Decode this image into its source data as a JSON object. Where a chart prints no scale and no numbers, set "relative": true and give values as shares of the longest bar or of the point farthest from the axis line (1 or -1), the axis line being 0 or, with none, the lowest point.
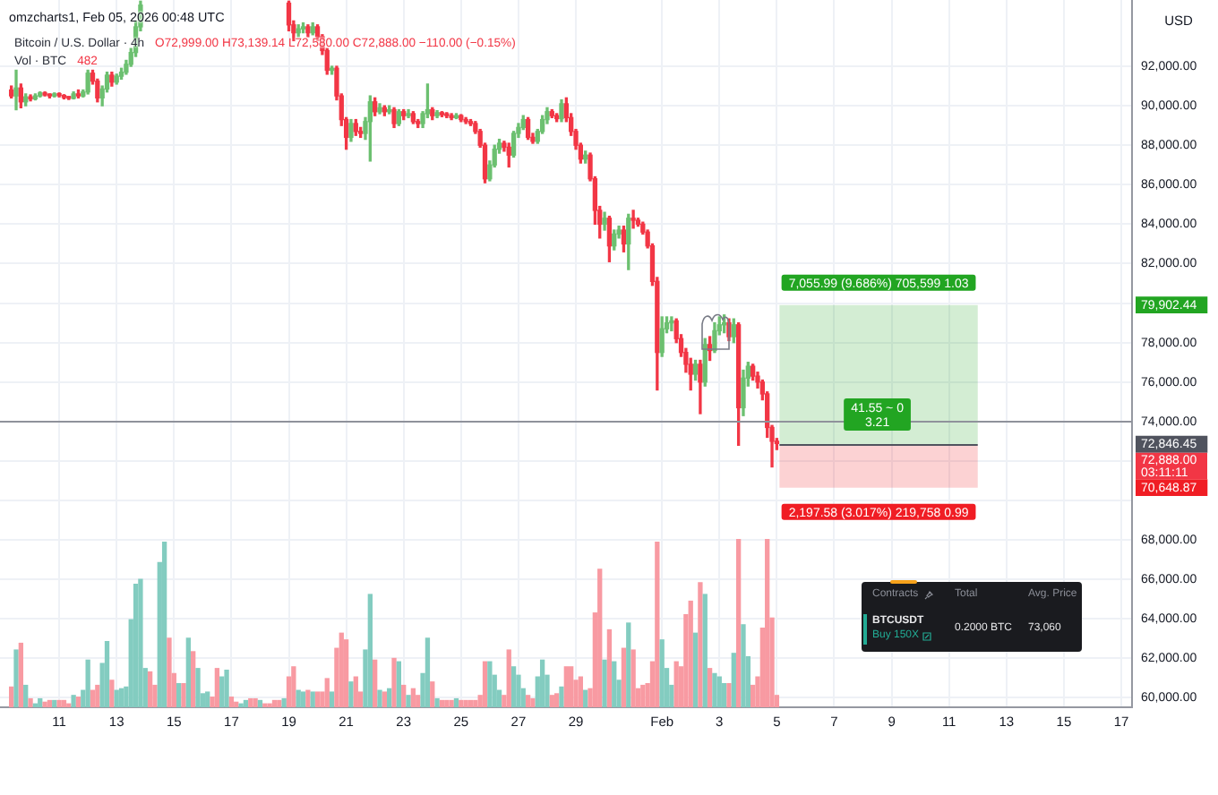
{
  "chart_data": [
    {
      "type": "candlestick",
      "title": "Bitcoin / U.S. Dollar · 4h",
      "subtitle": "O72,999.00 H73,139.14 L72,580.00 C72,888.00 −110.00 (−0.15%)",
      "ylabel": "USD",
      "x": [
        "2026-01-09T08:00",
        "2026-01-09T12:00",
        "2026-01-09T16:00",
        "2026-01-09T20:00",
        "2026-01-10T00:00",
        "2026-01-10T04:00",
        "2026-01-10T08:00",
        "2026-01-10T12:00",
        "2026-01-10T16:00",
        "2026-01-10T20:00",
        "2026-01-11T00:00",
        "2026-01-11T04:00",
        "2026-01-11T08:00",
        "2026-01-11T12:00",
        "2026-01-11T16:00",
        "2026-01-11T20:00",
        "2026-01-12T00:00",
        "2026-01-12T04:00",
        "2026-01-12T08:00",
        "2026-01-12T12:00",
        "2026-01-12T16:00",
        "2026-01-12T20:00",
        "2026-01-13T00:00",
        "2026-01-13T04:00",
        "2026-01-13T08:00",
        "2026-01-13T12:00",
        "2026-01-13T16:00",
        "2026-01-13T20:00",
        "2026-01-19T00:00",
        "2026-01-19T04:00",
        "2026-01-19T08:00",
        "2026-01-19T12:00",
        "2026-01-19T16:00",
        "2026-01-19T20:00",
        "2026-01-20T00:00",
        "2026-01-20T04:00",
        "2026-01-20T08:00",
        "2026-01-20T12:00",
        "2026-01-20T16:00",
        "2026-01-20T20:00",
        "2026-01-21T00:00",
        "2026-01-21T04:00",
        "2026-01-21T08:00",
        "2026-01-21T12:00",
        "2026-01-21T16:00",
        "2026-01-21T20:00",
        "2026-01-22T00:00",
        "2026-01-22T04:00",
        "2026-01-22T08:00",
        "2026-01-22T12:00",
        "2026-01-22T16:00",
        "2026-01-22T20:00",
        "2026-01-23T00:00",
        "2026-01-23T04:00",
        "2026-01-23T08:00",
        "2026-01-23T12:00",
        "2026-01-23T16:00",
        "2026-01-23T20:00",
        "2026-01-24T00:00",
        "2026-01-24T04:00",
        "2026-01-24T08:00",
        "2026-01-24T12:00",
        "2026-01-24T16:00",
        "2026-01-24T20:00",
        "2026-01-25T00:00",
        "2026-01-25T04:00",
        "2026-01-25T08:00",
        "2026-01-25T12:00",
        "2026-01-25T16:00",
        "2026-01-25T20:00",
        "2026-01-26T00:00",
        "2026-01-26T04:00",
        "2026-01-26T08:00",
        "2026-01-26T12:00",
        "2026-01-26T16:00",
        "2026-01-26T20:00",
        "2026-01-27T00:00",
        "2026-01-27T04:00",
        "2026-01-27T08:00",
        "2026-01-27T12:00",
        "2026-01-27T16:00",
        "2026-01-27T20:00",
        "2026-01-28T00:00",
        "2026-01-28T04:00",
        "2026-01-28T08:00",
        "2026-01-28T12:00",
        "2026-01-28T16:00",
        "2026-01-28T20:00",
        "2026-01-29T00:00",
        "2026-01-29T04:00",
        "2026-01-29T08:00",
        "2026-01-29T12:00",
        "2026-01-29T16:00",
        "2026-01-29T20:00",
        "2026-01-30T00:00",
        "2026-01-30T04:00",
        "2026-01-30T08:00",
        "2026-01-30T12:00",
        "2026-01-30T16:00",
        "2026-01-30T20:00",
        "2026-01-31T00:00",
        "2026-01-31T04:00",
        "2026-01-31T08:00",
        "2026-01-31T12:00",
        "2026-01-31T16:00",
        "2026-01-31T20:00",
        "2026-02-01T00:00",
        "2026-02-01T04:00",
        "2026-02-01T08:00",
        "2026-02-01T12:00",
        "2026-02-01T16:00",
        "2026-02-01T20:00",
        "2026-02-02T00:00",
        "2026-02-02T04:00",
        "2026-02-02T08:00",
        "2026-02-02T12:00",
        "2026-02-02T16:00",
        "2026-02-02T20:00",
        "2026-02-03T00:00",
        "2026-02-03T04:00",
        "2026-02-03T08:00",
        "2026-02-03T12:00",
        "2026-02-03T16:00",
        "2026-02-03T20:00",
        "2026-02-04T00:00",
        "2026-02-04T04:00",
        "2026-02-04T08:00",
        "2026-02-04T12:00",
        "2026-02-04T16:00",
        "2026-02-04T20:00",
        "2026-02-05T00:00"
      ],
      "ohlc": [
        [
          90800,
          91000,
          90400,
          90500
        ],
        [
          90500,
          91800,
          89800,
          90900
        ],
        [
          90900,
          91100,
          89900,
          90200
        ],
        [
          90200,
          90600,
          90000,
          90450
        ],
        [
          90450,
          90550,
          90250,
          90350
        ],
        [
          90350,
          90600,
          90300,
          90500
        ],
        [
          90500,
          90700,
          90450,
          90650
        ],
        [
          90650,
          90700,
          90500,
          90550
        ],
        [
          90550,
          90600,
          90400,
          90500
        ],
        [
          90500,
          90650,
          90450,
          90600
        ],
        [
          90600,
          90650,
          90450,
          90520
        ],
        [
          90520,
          90560,
          90350,
          90420
        ],
        [
          90420,
          90450,
          90320,
          90380
        ],
        [
          90380,
          90700,
          90350,
          90600
        ],
        [
          90600,
          90800,
          90400,
          90500
        ],
        [
          90500,
          90800,
          90450,
          90700
        ],
        [
          90700,
          91800,
          90600,
          91650
        ],
        [
          91650,
          91800,
          91100,
          91250
        ],
        [
          91250,
          91350,
          90200,
          90400
        ],
        [
          90400,
          91000,
          90000,
          90850
        ],
        [
          90850,
          91700,
          90700,
          91550
        ],
        [
          91550,
          91700,
          91000,
          91200
        ],
        [
          91200,
          91600,
          91100,
          91500
        ],
        [
          91500,
          91900,
          91350,
          91700
        ],
        [
          91700,
          92300,
          91600,
          92100
        ],
        [
          92100,
          92900,
          92000,
          92700
        ],
        [
          92700,
          94300,
          92500,
          94000
        ],
        [
          94000,
          95300,
          93800,
          95100
        ],
        [
          95200,
          95300,
          93800,
          94100
        ],
        [
          94100,
          94300,
          93300,
          93700
        ],
        [
          93700,
          94100,
          93500,
          93900
        ],
        [
          93900,
          94200,
          93700,
          94000
        ],
        [
          94000,
          94100,
          93500,
          93700
        ],
        [
          93700,
          94200,
          93600,
          94000
        ],
        [
          94000,
          94100,
          93300,
          93500
        ],
        [
          93500,
          93600,
          92600,
          92800
        ],
        [
          92800,
          92900,
          91600,
          91800
        ],
        [
          91800,
          92000,
          91600,
          91900
        ],
        [
          91900,
          92000,
          90300,
          90500
        ],
        [
          90500,
          90600,
          89000,
          89300
        ],
        [
          89300,
          89400,
          87800,
          88400
        ],
        [
          88400,
          89300,
          88200,
          89100
        ],
        [
          89100,
          89300,
          88500,
          88700
        ],
        [
          88700,
          88900,
          88400,
          88600
        ],
        [
          88600,
          89400,
          88300,
          89200
        ],
        [
          89200,
          90500,
          87200,
          90200
        ],
        [
          90200,
          90400,
          89500,
          89700
        ],
        [
          89700,
          90100,
          89600,
          89900
        ],
        [
          89900,
          90000,
          89500,
          89700
        ],
        [
          89700,
          90000,
          89600,
          89800
        ],
        [
          89800,
          89900,
          88900,
          89100
        ],
        [
          89100,
          89800,
          89000,
          89700
        ],
        [
          89700,
          89800,
          89300,
          89500
        ],
        [
          89500,
          89800,
          89400,
          89600
        ],
        [
          89600,
          89700,
          89100,
          89200
        ],
        [
          89200,
          89300,
          88900,
          89100
        ],
        [
          89100,
          89700,
          88900,
          89600
        ],
        [
          89600,
          91100,
          89400,
          89800
        ],
        [
          89800,
          89900,
          89300,
          89500
        ],
        [
          89500,
          89750,
          89400,
          89650
        ],
        [
          89650,
          89700,
          89450,
          89550
        ],
        [
          89550,
          89650,
          89400,
          89500
        ],
        [
          89500,
          89600,
          89300,
          89400
        ],
        [
          89400,
          89600,
          89350,
          89500
        ],
        [
          89500,
          89550,
          89200,
          89300
        ],
        [
          89300,
          89400,
          89100,
          89200
        ],
        [
          89200,
          89300,
          89000,
          89100
        ],
        [
          89100,
          89200,
          88600,
          88700
        ],
        [
          88700,
          88800,
          87900,
          88000
        ],
        [
          88000,
          88100,
          86100,
          86300
        ],
        [
          86300,
          87200,
          86200,
          87000
        ],
        [
          87000,
          88000,
          86900,
          87800
        ],
        [
          87800,
          88300,
          87600,
          88100
        ],
        [
          88100,
          88200,
          87700,
          87900
        ],
        [
          87900,
          88100,
          86900,
          87500
        ],
        [
          87500,
          88700,
          87400,
          88600
        ],
        [
          88600,
          89100,
          88400,
          88900
        ],
        [
          88900,
          89500,
          88800,
          89300
        ],
        [
          89300,
          89400,
          88300,
          88400
        ],
        [
          88400,
          88600,
          88100,
          88200
        ],
        [
          88200,
          88800,
          88100,
          88700
        ],
        [
          88700,
          89500,
          88600,
          89300
        ],
        [
          89300,
          89900,
          89100,
          89700
        ],
        [
          89700,
          89800,
          89400,
          89500
        ],
        [
          89500,
          89600,
          89200,
          89350
        ],
        [
          89350,
          90300,
          89200,
          90100
        ],
        [
          90100,
          90400,
          89200,
          89400
        ],
        [
          89400,
          89600,
          88500,
          88700
        ],
        [
          88700,
          88800,
          87800,
          88000
        ],
        [
          88000,
          88100,
          87100,
          87300
        ],
        [
          87300,
          87700,
          87100,
          87500
        ],
        [
          87500,
          87600,
          86200,
          86300
        ],
        [
          86300,
          86400,
          84000,
          84700
        ],
        [
          84700,
          84900,
          83300,
          84000
        ],
        [
          84000,
          84600,
          83700,
          84300
        ],
        [
          84300,
          84400,
          82100,
          82900
        ],
        [
          82900,
          83700,
          82700,
          83500
        ],
        [
          83500,
          83900,
          83300,
          83700
        ],
        [
          83700,
          83900,
          82600,
          83000
        ],
        [
          83000,
          84500,
          81700,
          84300
        ],
        [
          84300,
          84700,
          83800,
          84200
        ],
        [
          84200,
          84300,
          83900,
          84000
        ],
        [
          84000,
          84100,
          83500,
          83600
        ],
        [
          83600,
          83700,
          82800,
          82900
        ],
        [
          82900,
          83000,
          80900,
          81100
        ],
        [
          81100,
          81300,
          75600,
          77500
        ],
        [
          77500,
          79300,
          77300,
          78700
        ],
        [
          78700,
          79300,
          78500,
          79000
        ],
        [
          79000,
          79300,
          78600,
          79100
        ],
        [
          79100,
          79200,
          78000,
          78200
        ],
        [
          78200,
          78400,
          77300,
          77500
        ],
        [
          77500,
          77700,
          76500,
          76900
        ],
        [
          76900,
          77200,
          75600,
          76400
        ],
        [
          76400,
          77100,
          76100,
          76900
        ],
        [
          76900,
          77100,
          74400,
          76000
        ],
        [
          76000,
          78200,
          75800,
          77900
        ],
        [
          77900,
          78300,
          77100,
          77600
        ],
        [
          77600,
          79000,
          77500,
          78600
        ],
        [
          78600,
          79300,
          78400,
          78900
        ],
        [
          78900,
          79400,
          78500,
          79000
        ],
        [
          79000,
          79200,
          78100,
          78300
        ],
        [
          78300,
          79200,
          78000,
          78900
        ],
        [
          78900,
          79000,
          72800,
          74700
        ],
        [
          74700,
          76600,
          74300,
          76200
        ],
        [
          76200,
          77000,
          75800,
          76800
        ],
        [
          76800,
          76900,
          76100,
          76300
        ],
        [
          76300,
          76500,
          75700,
          76000
        ],
        [
          76000,
          76100,
          75100,
          75400
        ],
        [
          75400,
          75500,
          73200,
          73700
        ],
        [
          73700,
          73800,
          71700,
          72998
        ],
        [
          72999,
          73139.14,
          72580,
          72888
        ]
      ],
      "colors": [
        "#f23645",
        "#6cc070",
        "#f23645",
        "#6cc070",
        "#f23645",
        "#6cc070",
        "#6cc070",
        "#f23645",
        "#f23645",
        "#6cc070",
        "#f23645",
        "#f23645",
        "#f23645",
        "#6cc070",
        "#f23645",
        "#6cc070",
        "#6cc070",
        "#f23645",
        "#f23645",
        "#6cc070",
        "#6cc070",
        "#f23645",
        "#6cc070",
        "#6cc070",
        "#6cc070",
        "#6cc070",
        "#6cc070",
        "#6cc070",
        "#f23645",
        "#f23645",
        "#6cc070",
        "#6cc070",
        "#f23645",
        "#6cc070",
        "#f23645",
        "#f23645",
        "#f23645",
        "#6cc070",
        "#f23645",
        "#f23645",
        "#f23645",
        "#6cc070",
        "#f23645",
        "#f23645",
        "#6cc070",
        "#6cc070",
        "#f23645",
        "#6cc070",
        "#f23645",
        "#6cc070",
        "#f23645",
        "#6cc070",
        "#f23645",
        "#6cc070",
        "#f23645",
        "#f23645",
        "#6cc070",
        "#6cc070",
        "#f23645",
        "#6cc070",
        "#f23645",
        "#f23645",
        "#f23645",
        "#6cc070",
        "#f23645",
        "#f23645",
        "#f23645",
        "#f23645",
        "#f23645",
        "#f23645",
        "#6cc070",
        "#6cc070",
        "#6cc070",
        "#f23645",
        "#f23645",
        "#6cc070",
        "#6cc070",
        "#6cc070",
        "#f23645",
        "#f23645",
        "#6cc070",
        "#6cc070",
        "#6cc070",
        "#f23645",
        "#f23645",
        "#6cc070",
        "#f23645",
        "#f23645",
        "#f23645",
        "#f23645",
        "#6cc070",
        "#f23645",
        "#f23645",
        "#f23645",
        "#6cc070",
        "#f23645",
        "#6cc070",
        "#6cc070",
        "#f23645",
        "#6cc070",
        "#f23645",
        "#f23645",
        "#f23645",
        "#f23645",
        "#f23645",
        "#f23645",
        "#6cc070",
        "#6cc070",
        "#6cc070",
        "#f23645",
        "#f23645",
        "#f23645",
        "#f23645",
        "#6cc070",
        "#f23645",
        "#6cc070",
        "#f23645",
        "#6cc070",
        "#6cc070",
        "#6cc070",
        "#f23645",
        "#6cc070",
        "#f23645",
        "#6cc070",
        "#6cc070",
        "#f23645",
        "#f23645",
        "#f23645",
        "#f23645",
        "#f23645",
        "#f23645"
      ],
      "xlim": [
        "2026-01-08T22:30",
        "2026-02-17T09:00"
      ],
      "xticks": [
        {
          "value": "2026-01-11",
          "label": "11"
        },
        {
          "value": "2026-01-13",
          "label": "13"
        },
        {
          "value": "2026-01-15",
          "label": "15"
        },
        {
          "value": "2026-01-17",
          "label": "17"
        },
        {
          "value": "2026-01-19",
          "label": "19"
        },
        {
          "value": "2026-01-21",
          "label": "21"
        },
        {
          "value": "2026-01-23",
          "label": "23"
        },
        {
          "value": "2026-01-25",
          "label": "25"
        },
        {
          "value": "2026-01-27",
          "label": "27"
        },
        {
          "value": "2026-01-29",
          "label": "29"
        },
        {
          "value": "2026-02-01",
          "label": "Feb"
        },
        {
          "value": "2026-02-03",
          "label": "3"
        },
        {
          "value": "2026-02-05",
          "label": "5"
        },
        {
          "value": "2026-02-07",
          "label": "7"
        },
        {
          "value": "2026-02-09",
          "label": "9"
        },
        {
          "value": "2026-02-11",
          "label": "11"
        },
        {
          "value": "2026-02-13",
          "label": "13"
        },
        {
          "value": "2026-02-15",
          "label": "15"
        },
        {
          "value": "2026-02-17",
          "label": "17"
        }
      ],
      "ylim": [
        59520,
        95360
      ],
      "yticks": [
        {
          "value": 60000,
          "label": "60,000.00"
        },
        {
          "value": 62000,
          "label": "62,000.00"
        },
        {
          "value": 64000,
          "label": "64,000.00"
        },
        {
          "value": 66000,
          "label": "66,000.00"
        },
        {
          "value": 68000,
          "label": "68,000.00"
        },
        {
          "value": 70000,
          "label": null
        },
        {
          "value": 70648.87,
          "label": "70,648.87"
        },
        {
          "value": 72000,
          "label": null
        },
        {
          "value": 72846.45,
          "label": "72,846.45"
        },
        {
          "value": 74000,
          "label": "74,000.00"
        },
        {
          "value": 76000,
          "label": "76,000.00"
        },
        {
          "value": 78000,
          "label": "78,000.00"
        },
        {
          "value": 79902.44,
          "label": "79,902.44"
        },
        {
          "value": 80000,
          "label": null
        },
        {
          "value": 82000,
          "label": "82,000.00"
        },
        {
          "value": 84000,
          "label": "84,000.00"
        },
        {
          "value": 86000,
          "label": "86,000.00"
        },
        {
          "value": 88000,
          "label": "88,000.00"
        },
        {
          "value": 90000,
          "label": "90,000.00"
        },
        {
          "value": 92000,
          "label": "92,000.00"
        }
      ],
      "grid": true,
      "ref_lines": [
        {
          "axis": "y",
          "value": 74000,
          "color": "#8f929b"
        },
        {
          "axis": "y",
          "value": 72846.45,
          "color": "#50535e"
        }
      ],
      "bands": [
        {
          "axis": "y",
          "from": 72846.45,
          "to": 79902.44,
          "color": "#22a522",
          "label": "7,055.99 (9.686%) 705,599 1.03"
        },
        {
          "axis": "y",
          "from": 70648.87,
          "to": 72846.45,
          "color": "#f01d24",
          "label": "2,197.58 (3.017%) 219,758 0.99"
        }
      ],
      "annotations": [
        "omzcharts1, Feb 05, 2026 00:48 UTC",
        "72,888.00\n03:11:11",
        {
          "text": "41.55 ~ 0\n3.21",
          "x": "2026-02-08T12:00",
          "y": 74356
        }
      ]
    },
    {
      "type": "bar",
      "title": "Vol · BTC",
      "annotations": [
        "482"
      ],
      "relative": true,
      "tick_labels": false,
      "xlim": [
        "2026-01-08T22:30",
        "2026-02-17T09:00"
      ],
      "x": [
        "2026-01-09T08:00",
        "2026-01-09T12:00",
        "2026-01-09T16:00",
        "2026-01-09T20:00",
        "2026-01-10T00:00",
        "2026-01-10T04:00",
        "2026-01-10T08:00",
        "2026-01-10T12:00",
        "2026-01-10T16:00",
        "2026-01-10T20:00",
        "2026-01-11T00:00",
        "2026-01-11T04:00",
        "2026-01-11T08:00",
        "2026-01-11T12:00",
        "2026-01-11T16:00",
        "2026-01-11T20:00",
        "2026-01-12T00:00",
        "2026-01-12T04:00",
        "2026-01-12T08:00",
        "2026-01-12T12:00",
        "2026-01-12T16:00",
        "2026-01-12T20:00",
        "2026-01-13T00:00",
        "2026-01-13T04:00",
        "2026-01-13T08:00",
        "2026-01-13T12:00",
        "2026-01-13T16:00",
        "2026-01-13T20:00",
        "2026-01-14T00:00",
        "2026-01-14T04:00",
        "2026-01-14T08:00",
        "2026-01-14T12:00",
        "2026-01-14T16:00",
        "2026-01-14T20:00",
        "2026-01-15T00:00",
        "2026-01-15T04:00",
        "2026-01-15T08:00",
        "2026-01-15T12:00",
        "2026-01-15T16:00",
        "2026-01-15T20:00",
        "2026-01-16T00:00",
        "2026-01-16T04:00",
        "2026-01-16T08:00",
        "2026-01-16T12:00",
        "2026-01-16T16:00",
        "2026-01-16T20:00",
        "2026-01-17T00:00",
        "2026-01-17T04:00",
        "2026-01-17T08:00",
        "2026-01-17T12:00",
        "2026-01-17T16:00",
        "2026-01-17T20:00",
        "2026-01-18T00:00",
        "2026-01-18T04:00",
        "2026-01-18T08:00",
        "2026-01-18T12:00",
        "2026-01-18T16:00",
        "2026-01-18T20:00",
        "2026-01-19T00:00",
        "2026-01-19T04:00",
        "2026-01-19T08:00",
        "2026-01-19T12:00",
        "2026-01-19T16:00",
        "2026-01-19T20:00",
        "2026-01-20T00:00",
        "2026-01-20T04:00",
        "2026-01-20T08:00",
        "2026-01-20T12:00",
        "2026-01-20T16:00",
        "2026-01-20T20:00",
        "2026-01-21T00:00",
        "2026-01-21T04:00",
        "2026-01-21T08:00",
        "2026-01-21T12:00",
        "2026-01-21T16:00",
        "2026-01-21T20:00",
        "2026-01-22T00:00",
        "2026-01-22T04:00",
        "2026-01-22T08:00",
        "2026-01-22T12:00",
        "2026-01-22T16:00",
        "2026-01-22T20:00",
        "2026-01-23T00:00",
        "2026-01-23T04:00",
        "2026-01-23T08:00",
        "2026-01-23T12:00",
        "2026-01-23T16:00",
        "2026-01-23T20:00",
        "2026-01-24T00:00",
        "2026-01-24T04:00",
        "2026-01-24T08:00",
        "2026-01-24T12:00",
        "2026-01-24T16:00",
        "2026-01-24T20:00",
        "2026-01-25T00:00",
        "2026-01-25T04:00",
        "2026-01-25T08:00",
        "2026-01-25T12:00",
        "2026-01-25T16:00",
        "2026-01-25T20:00",
        "2026-01-26T00:00",
        "2026-01-26T04:00",
        "2026-01-26T08:00",
        "2026-01-26T12:00",
        "2026-01-26T16:00",
        "2026-01-26T20:00",
        "2026-01-27T00:00",
        "2026-01-27T04:00",
        "2026-01-27T08:00",
        "2026-01-27T12:00",
        "2026-01-27T16:00",
        "2026-01-27T20:00",
        "2026-01-28T00:00",
        "2026-01-28T04:00",
        "2026-01-28T08:00",
        "2026-01-28T12:00",
        "2026-01-28T16:00",
        "2026-01-28T20:00",
        "2026-01-29T00:00",
        "2026-01-29T04:00",
        "2026-01-29T08:00",
        "2026-01-29T12:00",
        "2026-01-29T16:00",
        "2026-01-29T20:00",
        "2026-01-30T00:00",
        "2026-01-30T04:00",
        "2026-01-30T08:00",
        "2026-01-30T12:00",
        "2026-01-30T16:00",
        "2026-01-30T20:00",
        "2026-01-31T00:00",
        "2026-01-31T04:00",
        "2026-01-31T08:00",
        "2026-01-31T12:00",
        "2026-01-31T16:00",
        "2026-01-31T20:00",
        "2026-02-01T00:00",
        "2026-02-01T04:00",
        "2026-02-01T08:00",
        "2026-02-01T12:00",
        "2026-02-01T16:00",
        "2026-02-01T20:00",
        "2026-02-02T00:00",
        "2026-02-02T04:00",
        "2026-02-02T08:00",
        "2026-02-02T12:00",
        "2026-02-02T16:00",
        "2026-02-02T20:00",
        "2026-02-03T00:00",
        "2026-02-03T04:00",
        "2026-02-03T08:00",
        "2026-02-03T12:00",
        "2026-02-03T16:00",
        "2026-02-03T20:00",
        "2026-02-04T00:00",
        "2026-02-04T04:00",
        "2026-02-04T08:00",
        "2026-02-04T12:00",
        "2026-02-04T16:00",
        "2026-02-04T20:00",
        "2026-02-05T00:00"
      ],
      "values": [
        0.12,
        0.34,
        0.38,
        0.13,
        0.05,
        0.02,
        0.05,
        0.03,
        0.04,
        0.04,
        0.04,
        0.04,
        0.02,
        0.07,
        0.06,
        0.1,
        0.28,
        0.1,
        0.13,
        0.26,
        0.39,
        0.16,
        0.1,
        0.11,
        0.12,
        0.52,
        0.73,
        0.76,
        0.23,
        0.21,
        0.13,
        0.86,
        0.98,
        0.41,
        0.2,
        0.14,
        0.14,
        0.41,
        0.33,
        0.23,
        0.08,
        0.09,
        0.06,
        0.23,
        0.18,
        0.22,
        0.06,
        0.03,
        0.02,
        0.04,
        0.05,
        0.05,
        0.04,
        0.02,
        0.02,
        0.04,
        0.04,
        0.05,
        0.18,
        0.24,
        0.1,
        0.09,
        0.1,
        0.09,
        0.09,
        0.09,
        0.17,
        0.09,
        0.35,
        0.44,
        0.4,
        0.15,
        0.18,
        0.09,
        0.34,
        0.67,
        0.28,
        0.1,
        0.09,
        0.11,
        0.29,
        0.27,
        0.13,
        0.07,
        0.11,
        0.07,
        0.2,
        0.41,
        0.15,
        0.05,
        0.04,
        0.04,
        0.04,
        0.05,
        0.04,
        0.04,
        0.04,
        0.04,
        0.07,
        0.27,
        0.27,
        0.19,
        0.1,
        0.07,
        0.34,
        0.24,
        0.19,
        0.11,
        0.07,
        0.05,
        0.18,
        0.28,
        0.19,
        0.07,
        0.08,
        0.12,
        0.24,
        0.24,
        0.16,
        0.18,
        0.1,
        0.11,
        0.56,
        0.82,
        0.28,
        0.46,
        0.27,
        0.16,
        0.35,
        0.5,
        0.34,
        0.11,
        0.13,
        0.14,
        0.27,
        0.98,
        0.4,
        0.23,
        0.13,
        0.27,
        0.24,
        0.55,
        0.63,
        0.44,
        0.74,
        0.67,
        0.23,
        0.2,
        0.18,
        0.14,
        0.14,
        0.32,
        1,
        0.49,
        0.3,
        0.13,
        0.18,
        0.47,
        1,
        0.53,
        0.07
      ],
      "colors": [
        "#f89aa2",
        "#83ccc0",
        "#f89aa2",
        "#83ccc0",
        "#f89aa2",
        "#83ccc0",
        "#83ccc0",
        "#f89aa2",
        "#f89aa2",
        "#83ccc0",
        "#f89aa2",
        "#f89aa2",
        "#f89aa2",
        "#83ccc0",
        "#f89aa2",
        "#83ccc0",
        "#83ccc0",
        "#f89aa2",
        "#f89aa2",
        "#83ccc0",
        "#83ccc0",
        "#f89aa2",
        "#83ccc0",
        "#83ccc0",
        "#83ccc0",
        "#83ccc0",
        "#83ccc0",
        "#83ccc0",
        "#83ccc0",
        "#f89aa2",
        "#f89aa2",
        "#83ccc0",
        "#83ccc0",
        "#f89aa2",
        "#f89aa2",
        "#83ccc0",
        "#f89aa2",
        "#83ccc0",
        "#f89aa2",
        "#83ccc0",
        "#83ccc0",
        "#83ccc0",
        "#f89aa2",
        "#f89aa2",
        "#83ccc0",
        "#83ccc0",
        "#f89aa2",
        "#f89aa2",
        "#83ccc0",
        "#83ccc0",
        "#f89aa2",
        "#f89aa2",
        "#83ccc0",
        "#f89aa2",
        "#f89aa2",
        "#f89aa2",
        "#f89aa2",
        "#83ccc0",
        "#f89aa2",
        "#f89aa2",
        "#83ccc0",
        "#83ccc0",
        "#f89aa2",
        "#83ccc0",
        "#f89aa2",
        "#f89aa2",
        "#f89aa2",
        "#83ccc0",
        "#f89aa2",
        "#f89aa2",
        "#f89aa2",
        "#83ccc0",
        "#f89aa2",
        "#f89aa2",
        "#83ccc0",
        "#83ccc0",
        "#f89aa2",
        "#83ccc0",
        "#f89aa2",
        "#83ccc0",
        "#f89aa2",
        "#83ccc0",
        "#f89aa2",
        "#83ccc0",
        "#f89aa2",
        "#f89aa2",
        "#83ccc0",
        "#83ccc0",
        "#f89aa2",
        "#83ccc0",
        "#f89aa2",
        "#f89aa2",
        "#f89aa2",
        "#83ccc0",
        "#f89aa2",
        "#f89aa2",
        "#f89aa2",
        "#f89aa2",
        "#f89aa2",
        "#f89aa2",
        "#83ccc0",
        "#83ccc0",
        "#83ccc0",
        "#f89aa2",
        "#f89aa2",
        "#83ccc0",
        "#83ccc0",
        "#83ccc0",
        "#f89aa2",
        "#f89aa2",
        "#83ccc0",
        "#83ccc0",
        "#83ccc0",
        "#f89aa2",
        "#f89aa2",
        "#83ccc0",
        "#f89aa2",
        "#f89aa2",
        "#f89aa2",
        "#f89aa2",
        "#83ccc0",
        "#f89aa2",
        "#f89aa2",
        "#f89aa2",
        "#83ccc0",
        "#f89aa2",
        "#83ccc0",
        "#83ccc0",
        "#f89aa2",
        "#83ccc0",
        "#f89aa2",
        "#f89aa2",
        "#f89aa2",
        "#f89aa2",
        "#f89aa2",
        "#f89aa2",
        "#83ccc0",
        "#83ccc0",
        "#83ccc0",
        "#f89aa2",
        "#f89aa2",
        "#f89aa2",
        "#f89aa2",
        "#83ccc0",
        "#f89aa2",
        "#83ccc0",
        "#f89aa2",
        "#83ccc0",
        "#83ccc0",
        "#83ccc0",
        "#f89aa2",
        "#83ccc0",
        "#f89aa2",
        "#83ccc0",
        "#83ccc0",
        "#f89aa2",
        "#f89aa2",
        "#f89aa2",
        "#f89aa2",
        "#f89aa2",
        "#f89aa2"
      ]
    },
    {
      "type": "other",
      "annotations": [
        "Contracts",
        "Total",
        "Avg. Price",
        "BTCUSDT",
        "Buy 150X",
        "0.2000 BTC",
        "73,060"
      ]
    }
  ]
}
